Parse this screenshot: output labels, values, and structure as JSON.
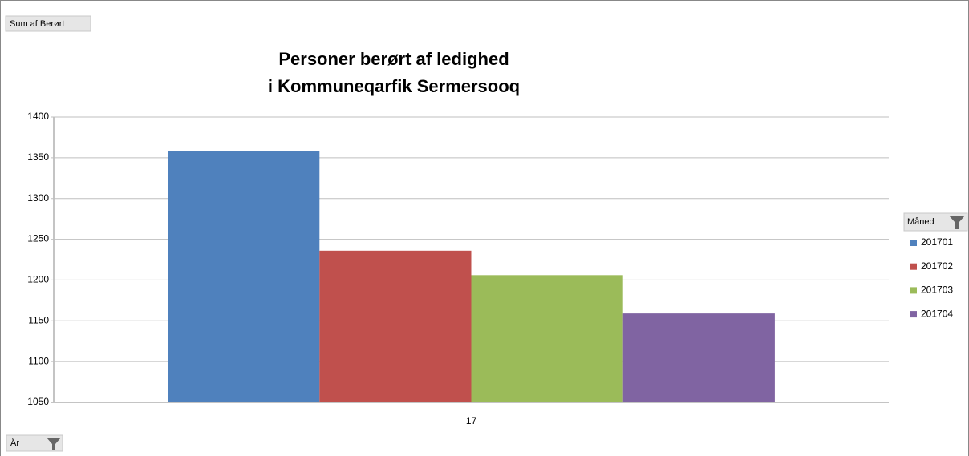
{
  "chart_data": {
    "type": "bar",
    "title": [
      "Personer berørt af ledighed",
      "i Kommuneqarfik Sermersooq"
    ],
    "value_field_button": "Sum af Berørt",
    "category_field_button": "År",
    "legend_title": "Måned",
    "categories": [
      "17"
    ],
    "series": [
      {
        "name": "201701",
        "color": "#4f81bd",
        "values": [
          1358
        ]
      },
      {
        "name": "201702",
        "color": "#c0504d",
        "values": [
          1236
        ]
      },
      {
        "name": "201703",
        "color": "#9bbb59",
        "values": [
          1206
        ]
      },
      {
        "name": "201704",
        "color": "#8064a2",
        "values": [
          1159
        ]
      }
    ],
    "ylim": [
      1050,
      1400
    ],
    "yticks": [
      1050,
      1100,
      1150,
      1200,
      1250,
      1300,
      1350,
      1400
    ],
    "grid": true,
    "legend": "right"
  }
}
